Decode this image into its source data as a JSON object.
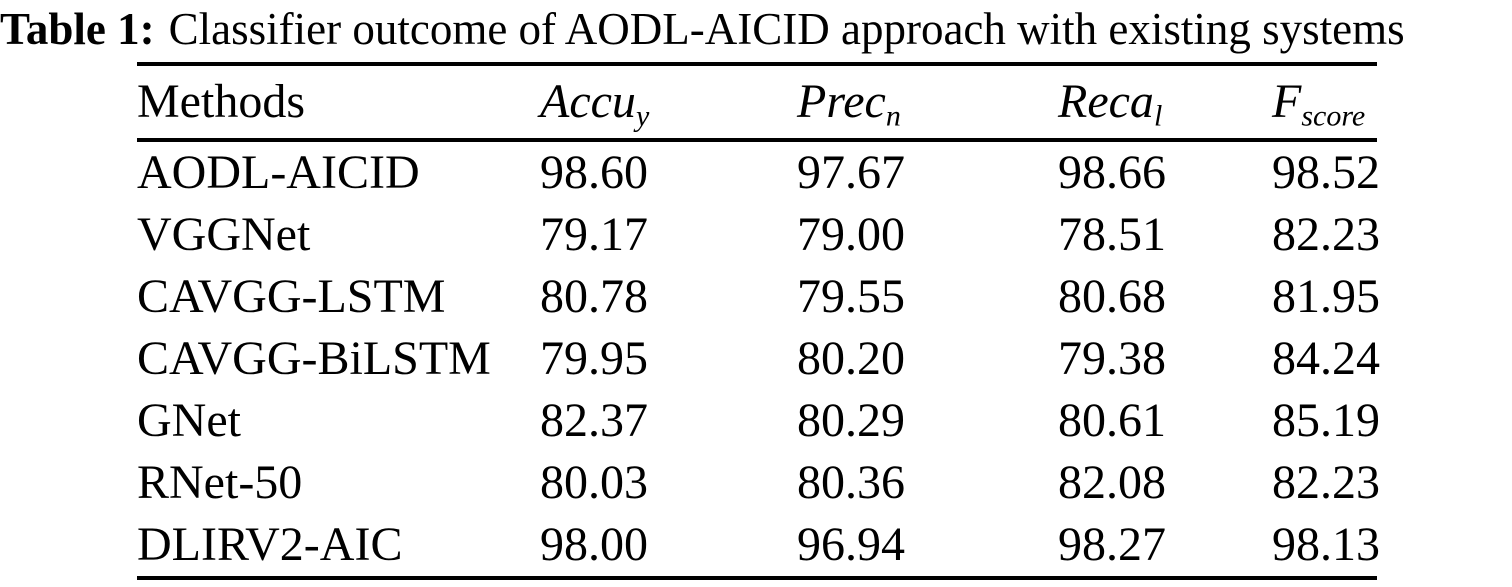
{
  "title": {
    "label": "Table 1:",
    "caption": "Classifier outcome of AODL-AICID approach with existing systems"
  },
  "table": {
    "columns": [
      {
        "label": "Methods",
        "sub": ""
      },
      {
        "label": "Accu",
        "sub": "y"
      },
      {
        "label": "Prec",
        "sub": "n"
      },
      {
        "label": "Reca",
        "sub": "l"
      },
      {
        "label": "F",
        "sub": "score"
      }
    ],
    "rows": [
      {
        "method": "AODL-AICID",
        "values": [
          "98.60",
          "97.67",
          "98.66",
          "98.52"
        ]
      },
      {
        "method": "VGGNet",
        "values": [
          "79.17",
          "79.00",
          "78.51",
          "82.23"
        ]
      },
      {
        "method": "CAVGG-LSTM",
        "values": [
          "80.78",
          "79.55",
          "80.68",
          "81.95"
        ]
      },
      {
        "method": "CAVGG-BiLSTM",
        "values": [
          "79.95",
          "80.20",
          "79.38",
          "84.24"
        ]
      },
      {
        "method": "GNet",
        "values": [
          "82.37",
          "80.29",
          "80.61",
          "85.19"
        ]
      },
      {
        "method": "RNet-50",
        "values": [
          "80.03",
          "80.36",
          "82.08",
          "82.23"
        ]
      },
      {
        "method": "DLIRV2-AIC",
        "values": [
          "98.00",
          "96.94",
          "98.27",
          "98.13"
        ]
      }
    ],
    "text_color": "#000000",
    "background_color": "#ffffff"
  }
}
